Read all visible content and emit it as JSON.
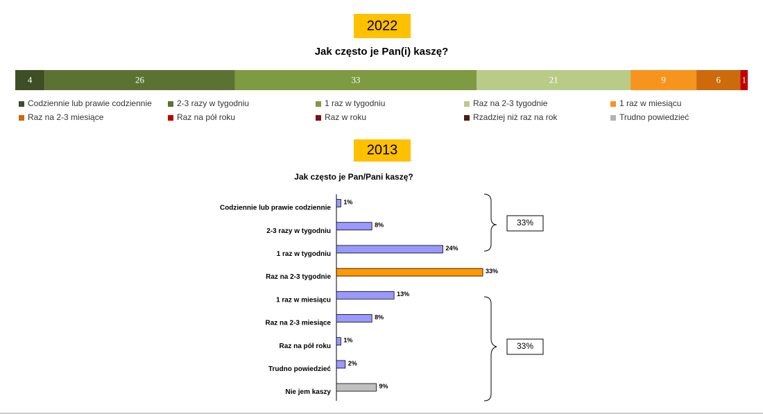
{
  "chart_data": [
    {
      "type": "stacked_bar",
      "year": "2022",
      "title": "Jak często je Pan(i) kaszę?",
      "series": [
        {
          "name": "Codziennie lub prawie codziennie",
          "color": "#3e4f25",
          "values": [
            4
          ]
        },
        {
          "name": "2-3 razy w tygodniu",
          "color": "#5c7232",
          "values": [
            26
          ]
        },
        {
          "name": "1 raz w tygodniu",
          "color": "#7e9a42",
          "values": [
            33
          ]
        },
        {
          "name": "Raz na 2-3 tygodnie",
          "color": "#b9cb87",
          "values": [
            21
          ]
        },
        {
          "name": "1 raz w miesiącu",
          "color": "#f7941e",
          "values": [
            9
          ]
        },
        {
          "name": "Raz na 2-3 miesiące",
          "color": "#cc6a0c",
          "values": [
            6
          ]
        },
        {
          "name": "Raz na pół roku",
          "color": "#c00000",
          "values": [
            1
          ]
        },
        {
          "name": "Raz w roku",
          "color": "#7a1212",
          "values": [
            0
          ]
        },
        {
          "name": "Rzadziej niż raz na rok",
          "color": "#4a1d0d",
          "values": [
            0
          ]
        },
        {
          "name": "Trudno powiedzieć",
          "color": "#b3b3b3",
          "values": [
            0
          ]
        }
      ]
    },
    {
      "type": "bar",
      "year": "2013",
      "title": "Jak często je Pan/Pani kaszę?",
      "categories": [
        "Codziennie lub prawie codziennie",
        "2-3 razy w tygodniu",
        "1 raz w tygodniu",
        "Raz na 2-3 tygodnie",
        "1 raz w miesiącu",
        "Raz na 2-3 miesiące",
        "Raz na pół roku",
        "Trudno powiedzieć",
        "Nie jem kaszy"
      ],
      "values": [
        1,
        8,
        24,
        33,
        13,
        8,
        1,
        2,
        9
      ],
      "value_labels": [
        "1%",
        "8%",
        "24%",
        "33%",
        "13%",
        "8%",
        "1%",
        "2%",
        "9%"
      ],
      "colors": [
        "#9999ff",
        "#9999ff",
        "#9999ff",
        "#ff9900",
        "#9999ff",
        "#9999ff",
        "#9999ff",
        "#9999ff",
        "#c0c0c0"
      ],
      "annotations": [
        "33%",
        "33%"
      ]
    }
  ]
}
